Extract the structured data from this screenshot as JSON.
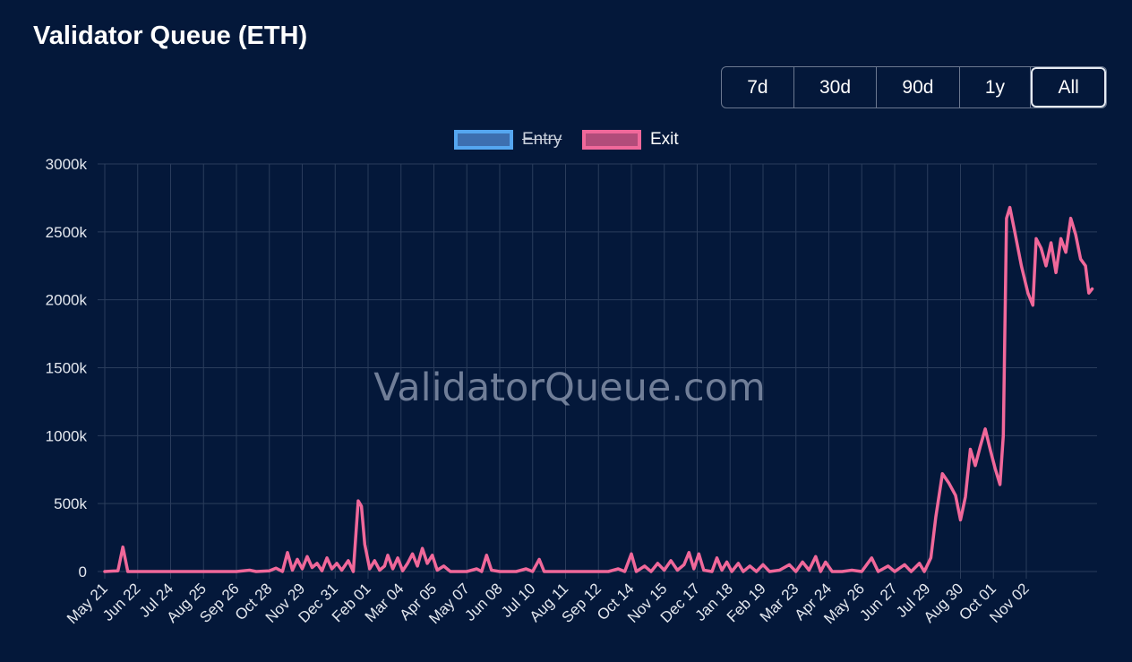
{
  "title": "Validator Queue (ETH)",
  "range_buttons": [
    {
      "label": "7d",
      "active": false
    },
    {
      "label": "30d",
      "active": false
    },
    {
      "label": "90d",
      "active": false
    },
    {
      "label": "1y",
      "active": false
    },
    {
      "label": "All",
      "active": true
    }
  ],
  "legend": [
    {
      "label": "Entry",
      "color": "#55a6f0",
      "fill": "#3d6fb0",
      "hidden": true
    },
    {
      "label": "Exit",
      "color": "#f0689a",
      "fill": "#b24c7a",
      "hidden": false
    }
  ],
  "watermark": "ValidatorQueue.com",
  "colors": {
    "background": "#04183a",
    "grid": "#2a3d5c",
    "exit_line": "#f0689a",
    "entry_line": "#55a6f0"
  },
  "chart_data": {
    "type": "line",
    "title": "Validator Queue (ETH)",
    "xlabel": "",
    "ylabel": "",
    "ylim": [
      0,
      3000000
    ],
    "y_ticks": [
      "0",
      "500k",
      "1000k",
      "1500k",
      "2000k",
      "2500k",
      "3000k"
    ],
    "x_ticks": [
      "May 21",
      "Jun 22",
      "Jul 24",
      "Aug 25",
      "Sep 26",
      "Oct 28",
      "Nov 29",
      "Dec 31",
      "Feb 01",
      "Mar 04",
      "Apr 05",
      "May 07",
      "Jun 08",
      "Jul 10",
      "Aug 11",
      "Sep 12",
      "Oct 14",
      "Nov 15",
      "Dec 17",
      "Jan 18",
      "Feb 19",
      "Mar 23",
      "Apr 24",
      "May 26",
      "Jun 27",
      "Jul 29",
      "Aug 30",
      "Oct 01",
      "Nov 02"
    ],
    "grid": true,
    "legend_position": "top-center",
    "series": [
      {
        "name": "Exit",
        "hidden": false,
        "points": [
          [
            0,
            0
          ],
          [
            0.4,
            5000
          ],
          [
            0.55,
            180000
          ],
          [
            0.7,
            0
          ],
          [
            1.0,
            0
          ],
          [
            1.5,
            0
          ],
          [
            2.0,
            0
          ],
          [
            2.5,
            0
          ],
          [
            3.0,
            0
          ],
          [
            3.5,
            0
          ],
          [
            4.0,
            0
          ],
          [
            4.4,
            10000
          ],
          [
            4.6,
            0
          ],
          [
            5.0,
            5000
          ],
          [
            5.2,
            25000
          ],
          [
            5.4,
            0
          ],
          [
            5.55,
            140000
          ],
          [
            5.7,
            10000
          ],
          [
            5.85,
            90000
          ],
          [
            6.0,
            20000
          ],
          [
            6.15,
            110000
          ],
          [
            6.3,
            30000
          ],
          [
            6.45,
            60000
          ],
          [
            6.6,
            5000
          ],
          [
            6.75,
            100000
          ],
          [
            6.9,
            20000
          ],
          [
            7.05,
            60000
          ],
          [
            7.2,
            10000
          ],
          [
            7.4,
            80000
          ],
          [
            7.55,
            0
          ],
          [
            7.7,
            520000
          ],
          [
            7.8,
            480000
          ],
          [
            7.9,
            200000
          ],
          [
            8.05,
            20000
          ],
          [
            8.2,
            80000
          ],
          [
            8.35,
            10000
          ],
          [
            8.5,
            40000
          ],
          [
            8.6,
            120000
          ],
          [
            8.75,
            20000
          ],
          [
            8.9,
            100000
          ],
          [
            9.05,
            5000
          ],
          [
            9.2,
            60000
          ],
          [
            9.35,
            130000
          ],
          [
            9.5,
            40000
          ],
          [
            9.65,
            170000
          ],
          [
            9.8,
            60000
          ],
          [
            9.95,
            120000
          ],
          [
            10.1,
            10000
          ],
          [
            10.3,
            40000
          ],
          [
            10.5,
            0
          ],
          [
            11.0,
            0
          ],
          [
            11.3,
            20000
          ],
          [
            11.45,
            0
          ],
          [
            11.6,
            120000
          ],
          [
            11.75,
            10000
          ],
          [
            12.0,
            0
          ],
          [
            12.5,
            0
          ],
          [
            12.8,
            20000
          ],
          [
            13.0,
            0
          ],
          [
            13.2,
            90000
          ],
          [
            13.35,
            0
          ],
          [
            13.8,
            0
          ],
          [
            14.2,
            0
          ],
          [
            14.8,
            0
          ],
          [
            15.3,
            0
          ],
          [
            15.6,
            20000
          ],
          [
            15.8,
            0
          ],
          [
            16.0,
            130000
          ],
          [
            16.15,
            0
          ],
          [
            16.4,
            40000
          ],
          [
            16.6,
            0
          ],
          [
            16.8,
            60000
          ],
          [
            17.0,
            10000
          ],
          [
            17.2,
            80000
          ],
          [
            17.4,
            10000
          ],
          [
            17.6,
            50000
          ],
          [
            17.75,
            140000
          ],
          [
            17.9,
            20000
          ],
          [
            18.05,
            130000
          ],
          [
            18.2,
            10000
          ],
          [
            18.45,
            0
          ],
          [
            18.6,
            100000
          ],
          [
            18.75,
            10000
          ],
          [
            18.9,
            70000
          ],
          [
            19.05,
            0
          ],
          [
            19.25,
            60000
          ],
          [
            19.4,
            0
          ],
          [
            19.6,
            40000
          ],
          [
            19.8,
            0
          ],
          [
            20.0,
            50000
          ],
          [
            20.2,
            0
          ],
          [
            20.5,
            10000
          ],
          [
            20.8,
            50000
          ],
          [
            21.0,
            0
          ],
          [
            21.2,
            70000
          ],
          [
            21.4,
            10000
          ],
          [
            21.6,
            110000
          ],
          [
            21.75,
            0
          ],
          [
            21.9,
            70000
          ],
          [
            22.1,
            0
          ],
          [
            22.4,
            0
          ],
          [
            22.7,
            10000
          ],
          [
            23.0,
            0
          ],
          [
            23.3,
            100000
          ],
          [
            23.5,
            0
          ],
          [
            23.8,
            40000
          ],
          [
            24.0,
            0
          ],
          [
            24.3,
            50000
          ],
          [
            24.5,
            0
          ],
          [
            24.75,
            60000
          ],
          [
            24.9,
            0
          ],
          [
            25.1,
            100000
          ],
          [
            25.25,
            400000
          ],
          [
            25.45,
            720000
          ],
          [
            25.65,
            650000
          ],
          [
            25.85,
            560000
          ],
          [
            26.0,
            380000
          ],
          [
            26.15,
            550000
          ],
          [
            26.3,
            900000
          ],
          [
            26.45,
            780000
          ],
          [
            26.6,
            920000
          ],
          [
            26.75,
            1050000
          ],
          [
            26.9,
            900000
          ],
          [
            27.05,
            760000
          ],
          [
            27.2,
            640000
          ],
          [
            27.3,
            1000000
          ],
          [
            27.4,
            2600000
          ],
          [
            27.5,
            2680000
          ],
          [
            27.65,
            2500000
          ],
          [
            27.85,
            2250000
          ],
          [
            28.05,
            2050000
          ],
          [
            28.2,
            1960000
          ],
          [
            28.3,
            2450000
          ],
          [
            28.45,
            2380000
          ],
          [
            28.6,
            2250000
          ],
          [
            28.75,
            2420000
          ],
          [
            28.9,
            2200000
          ],
          [
            29.05,
            2450000
          ],
          [
            29.2,
            2350000
          ],
          [
            29.35,
            2600000
          ],
          [
            29.5,
            2480000
          ],
          [
            29.65,
            2300000
          ],
          [
            29.8,
            2250000
          ],
          [
            29.9,
            2050000
          ],
          [
            30.0,
            2080000
          ]
        ]
      },
      {
        "name": "Entry",
        "hidden": true,
        "points": []
      }
    ]
  }
}
